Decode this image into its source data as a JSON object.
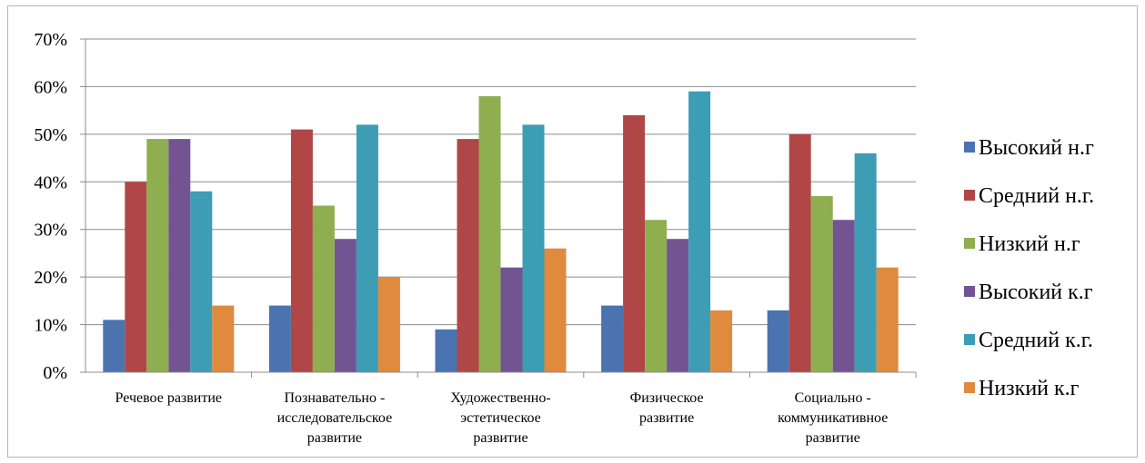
{
  "chart_data": {
    "type": "bar",
    "title": "",
    "xlabel": "",
    "ylabel": "",
    "ylim": [
      0,
      0.7
    ],
    "y_ticks": [
      "0%",
      "10%",
      "20%",
      "30%",
      "40%",
      "50%",
      "60%",
      "70%"
    ],
    "grid": true,
    "legend_position": "right",
    "categories": [
      [
        "Речевое развитие"
      ],
      [
        "Познавательно -",
        "исследовательское",
        "развитие"
      ],
      [
        "Художественно-",
        "эстетическое",
        "развитие"
      ],
      [
        "Физическое",
        "развитие"
      ],
      [
        "Социально -",
        "коммуникативное",
        "развитие"
      ]
    ],
    "series": [
      {
        "name": "Высокий н.г",
        "color": "#4a73b0",
        "values": [
          0.11,
          0.14,
          0.09,
          0.14,
          0.13
        ]
      },
      {
        "name": "Средний н.г.",
        "color": "#b04746",
        "values": [
          0.4,
          0.51,
          0.49,
          0.54,
          0.5
        ]
      },
      {
        "name": "Низкий н.г",
        "color": "#8eae50",
        "values": [
          0.49,
          0.35,
          0.58,
          0.32,
          0.37
        ]
      },
      {
        "name": "Высокий к.г",
        "color": "#735493",
        "values": [
          0.49,
          0.28,
          0.22,
          0.28,
          0.32
        ]
      },
      {
        "name": "Средний к.г.",
        "color": "#3d9db5",
        "values": [
          0.38,
          0.52,
          0.52,
          0.59,
          0.46
        ]
      },
      {
        "name": "Низкий к.г",
        "color": "#e08a3e",
        "values": [
          0.14,
          0.2,
          0.26,
          0.13,
          0.22
        ]
      }
    ]
  }
}
